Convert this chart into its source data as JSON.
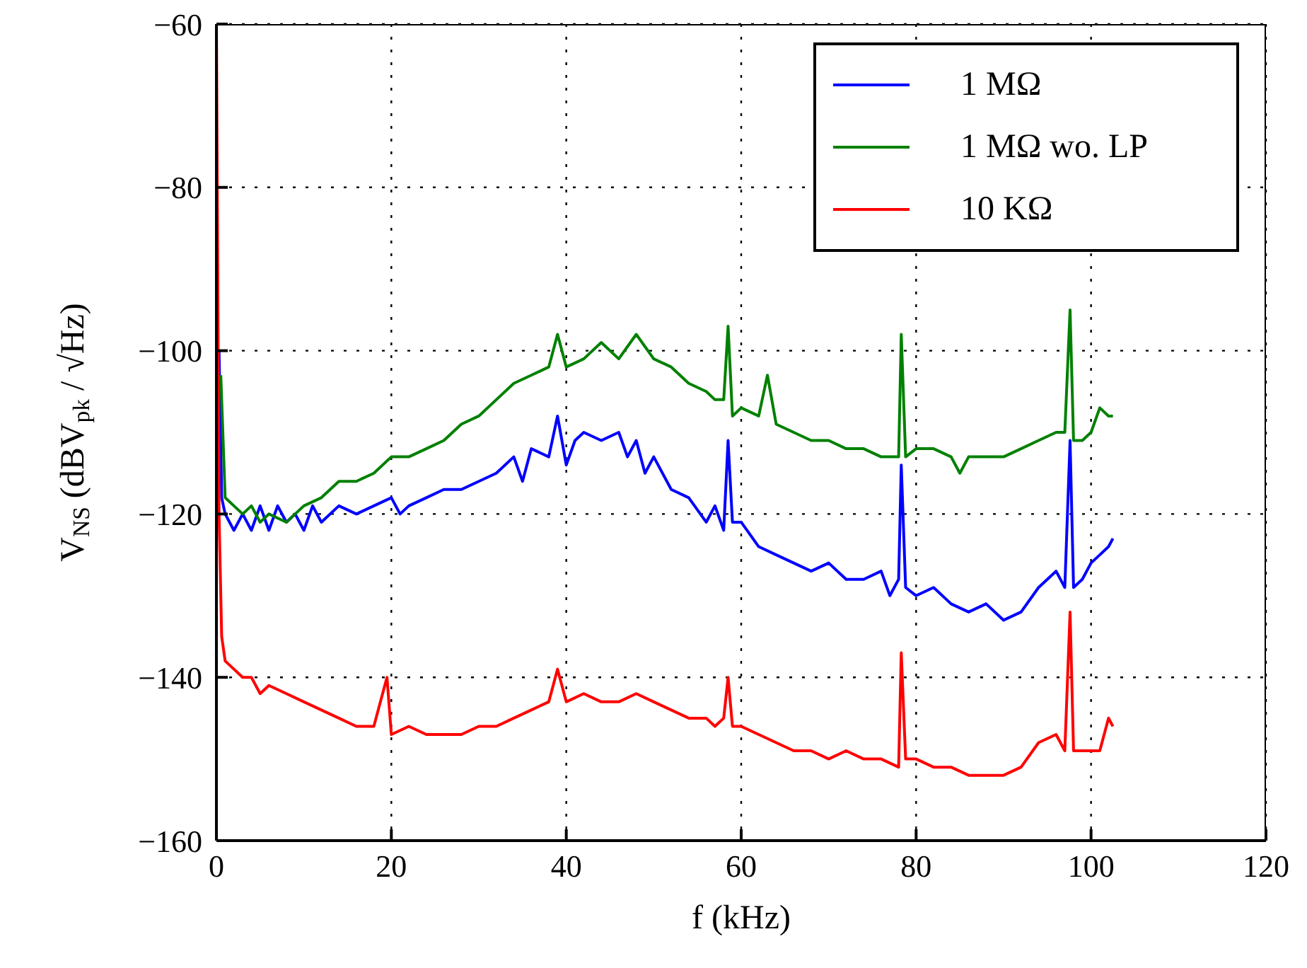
{
  "chart_data": {
    "type": "line",
    "xlabel": "f (kHz)",
    "ylabel": "V$_{NS}$ (dBV$_{pk}$ / √Hz)",
    "xlim": [
      0,
      120
    ],
    "xticks": [
      0,
      20,
      40,
      60,
      80,
      100,
      120
    ],
    "ylim": [
      -160,
      -60
    ],
    "yticks": [
      {
        "value": -160,
        "label": "−160"
      },
      {
        "value": -140,
        "label": "−140"
      },
      {
        "value": -120,
        "label": "−120"
      },
      {
        "value": -100,
        "label": "−100"
      },
      {
        "value": -80,
        "label": "−80"
      },
      {
        "value": -60,
        "label": "−60"
      }
    ],
    "grid": true,
    "legend": "top right",
    "marker": "none",
    "line_style": "solid",
    "series": [
      {
        "name": "1 MΩ",
        "color": "#0000ff",
        "x": [
          0.3,
          0.6,
          1,
          2,
          3,
          4,
          5,
          6,
          7,
          8,
          9,
          10,
          11,
          12,
          14,
          16,
          18,
          20,
          21,
          22,
          24,
          26,
          28,
          30,
          32,
          34,
          35,
          36,
          38,
          39,
          40,
          41,
          42,
          44,
          46,
          47,
          48,
          49,
          50,
          52,
          54,
          56,
          57,
          58,
          58.5,
          59,
          60,
          62,
          64,
          66,
          68,
          70,
          72,
          74,
          76,
          77,
          78,
          78.3,
          78.8,
          80,
          82,
          84,
          86,
          88,
          90,
          92,
          94,
          96,
          97,
          97.6,
          98,
          99,
          100,
          101,
          102,
          102.5
        ],
        "values": [
          -100,
          -118,
          -120,
          -122,
          -120,
          -122,
          -119,
          -122,
          -119,
          -121,
          -120,
          -122,
          -119,
          -121,
          -119,
          -120,
          -119,
          -118,
          -120,
          -119,
          -118,
          -117,
          -117,
          -116,
          -115,
          -113,
          -116,
          -112,
          -113,
          -108,
          -114,
          -111,
          -110,
          -111,
          -110,
          -113,
          -111,
          -115,
          -113,
          -117,
          -118,
          -121,
          -119,
          -122,
          -111,
          -121,
          -121,
          -124,
          -125,
          -126,
          -127,
          -126,
          -128,
          -128,
          -127,
          -130,
          -128,
          -114,
          -129,
          -130,
          -129,
          -131,
          -132,
          -131,
          -133,
          -132,
          -129,
          -127,
          -129,
          -111,
          -129,
          -128,
          -126,
          -125,
          -124,
          -123
        ]
      },
      {
        "name": "1 MΩ wo. LP",
        "color": "#008000",
        "x": [
          0.5,
          1,
          2,
          3,
          4,
          5,
          6,
          8,
          10,
          12,
          14,
          16,
          18,
          20,
          22,
          24,
          26,
          28,
          30,
          32,
          34,
          36,
          38,
          39,
          40,
          42,
          44,
          46,
          48,
          50,
          52,
          54,
          56,
          57,
          58,
          58.5,
          59,
          60,
          62,
          63,
          64,
          66,
          68,
          70,
          72,
          74,
          76,
          78,
          78.3,
          78.8,
          80,
          82,
          84,
          85,
          86,
          88,
          90,
          92,
          94,
          96,
          97,
          97.6,
          98,
          99,
          100,
          101,
          102,
          102.5
        ],
        "values": [
          -103,
          -118,
          -119,
          -120,
          -119,
          -121,
          -120,
          -121,
          -119,
          -118,
          -116,
          -116,
          -115,
          -113,
          -113,
          -112,
          -111,
          -109,
          -108,
          -106,
          -104,
          -103,
          -102,
          -98,
          -102,
          -101,
          -99,
          -101,
          -98,
          -101,
          -102,
          -104,
          -105,
          -106,
          -106,
          -97,
          -108,
          -107,
          -108,
          -103,
          -109,
          -110,
          -111,
          -111,
          -112,
          -112,
          -113,
          -113,
          -98,
          -113,
          -112,
          -112,
          -113,
          -115,
          -113,
          -113,
          -113,
          -112,
          -111,
          -110,
          -110,
          -95,
          -111,
          -111,
          -110,
          -107,
          -108,
          -108
        ]
      },
      {
        "name": "10 KΩ",
        "color": "#ff0000",
        "x": [
          0,
          0.3,
          0.6,
          1,
          2,
          3,
          4,
          5,
          6,
          8,
          10,
          12,
          14,
          16,
          18,
          19.5,
          20,
          22,
          24,
          26,
          28,
          30,
          32,
          34,
          36,
          38,
          39,
          40,
          42,
          44,
          46,
          48,
          50,
          52,
          54,
          56,
          57,
          58,
          58.5,
          59,
          60,
          62,
          64,
          66,
          68,
          70,
          72,
          74,
          76,
          78,
          78.3,
          78.8,
          80,
          82,
          84,
          86,
          88,
          90,
          92,
          94,
          96,
          97,
          97.6,
          98,
          99,
          100,
          101,
          102,
          102.5
        ],
        "values": [
          -60,
          -120,
          -135,
          -138,
          -139,
          -140,
          -140,
          -142,
          -141,
          -142,
          -143,
          -144,
          -145,
          -146,
          -146,
          -140,
          -147,
          -146,
          -147,
          -147,
          -147,
          -146,
          -146,
          -145,
          -144,
          -143,
          -139,
          -143,
          -142,
          -143,
          -143,
          -142,
          -143,
          -144,
          -145,
          -145,
          -146,
          -145,
          -140,
          -146,
          -146,
          -147,
          -148,
          -149,
          -149,
          -150,
          -149,
          -150,
          -150,
          -151,
          -137,
          -150,
          -150,
          -151,
          -151,
          -152,
          -152,
          -152,
          -151,
          -148,
          -147,
          -149,
          -132,
          -149,
          -149,
          -149,
          -149,
          -145,
          -146
        ]
      }
    ]
  }
}
